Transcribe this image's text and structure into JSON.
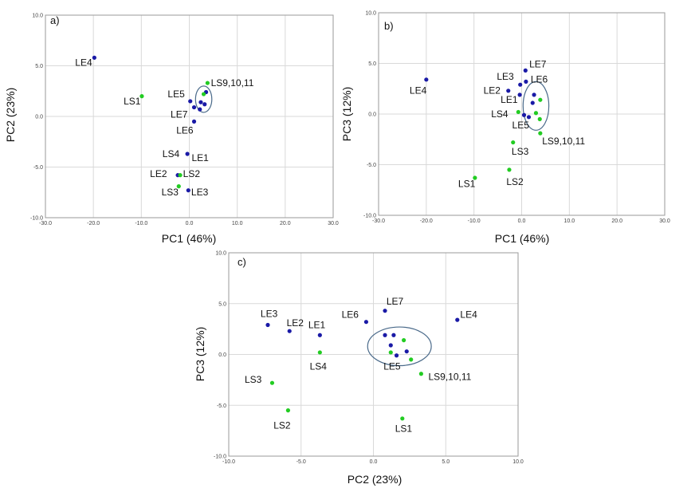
{
  "colors": {
    "LE": "#1a1aa6",
    "LS": "#22cc22"
  },
  "chart_data": [
    {
      "type": "scatter",
      "panel_label": "a)",
      "xlabel": "PC1 (46%)",
      "ylabel": "PC2 (23%)",
      "xlim": [
        -30,
        30
      ],
      "ylim": [
        -10,
        10
      ],
      "xticks": [
        -30,
        -20,
        -10,
        0,
        10,
        20,
        30
      ],
      "yticks": [
        -10,
        -5,
        0,
        5,
        10
      ],
      "xtick_labels": [
        "-30.0",
        "-20.0",
        "-10.0",
        "0.0",
        "10.0",
        "20.0",
        "30.0"
      ],
      "ytick_labels": [
        "-10.0",
        "-5.0",
        "0.0",
        "5.0",
        "10.0"
      ],
      "grid": true,
      "points": [
        {
          "group": "LE",
          "x": -19.8,
          "y": 5.8
        },
        {
          "group": "LS",
          "x": -9.9,
          "y": 2.0
        },
        {
          "group": "LS",
          "x": 3.8,
          "y": 3.3
        },
        {
          "group": "LE",
          "x": 3.5,
          "y": 2.4
        },
        {
          "group": "LS",
          "x": 3.0,
          "y": 2.2
        },
        {
          "group": "LE",
          "x": 0.2,
          "y": 1.5
        },
        {
          "group": "LE",
          "x": 2.4,
          "y": 1.4
        },
        {
          "group": "LE",
          "x": 3.2,
          "y": 1.2
        },
        {
          "group": "LE",
          "x": 1.0,
          "y": 0.9
        },
        {
          "group": "LE",
          "x": 2.2,
          "y": 0.7
        },
        {
          "group": "LE",
          "x": 1.0,
          "y": -0.5
        },
        {
          "group": "LE",
          "x": -0.4,
          "y": -3.7
        },
        {
          "group": "LE",
          "x": -2.4,
          "y": -5.8
        },
        {
          "group": "LS",
          "x": -1.9,
          "y": -5.8
        },
        {
          "group": "LS",
          "x": -2.2,
          "y": -6.9
        },
        {
          "group": "LE",
          "x": -0.2,
          "y": -7.3
        }
      ],
      "labels": [
        {
          "text": "LE4",
          "x": -23.8,
          "y": 5.0
        },
        {
          "text": "LS1",
          "x": -13.7,
          "y": 1.2
        },
        {
          "text": "LS9,10,11",
          "x": 4.5,
          "y": 3.0
        },
        {
          "text": "LE5",
          "x": -4.5,
          "y": 1.9
        },
        {
          "text": "LE7",
          "x": -3.9,
          "y": -0.1
        },
        {
          "text": "LE6",
          "x": -2.7,
          "y": -1.7
        },
        {
          "text": "LS4",
          "x": -5.6,
          "y": -4.0
        },
        {
          "text": "LE1",
          "x": 0.5,
          "y": -4.4
        },
        {
          "text": "LE2",
          "x": -8.2,
          "y": -6.0
        },
        {
          "text": "LS2",
          "x": -1.3,
          "y": -6.0
        },
        {
          "text": "LS3",
          "x": -5.8,
          "y": -7.8
        },
        {
          "text": "LE3",
          "x": 0.4,
          "y": -7.8
        }
      ],
      "ellipse": {
        "cx": 3.0,
        "cy": 1.7,
        "rx": 1.7,
        "ry": 1.3
      }
    },
    {
      "type": "scatter",
      "panel_label": "b)",
      "xlabel": "PC1 (46%)",
      "ylabel": "PC3 (12%)",
      "xlim": [
        -30,
        30
      ],
      "ylim": [
        -10,
        10
      ],
      "xticks": [
        -30,
        -20,
        -10,
        0,
        10,
        20,
        30
      ],
      "yticks": [
        -10,
        -5,
        0,
        5,
        10
      ],
      "xtick_labels": [
        "-30.0",
        "-20.0",
        "-10.0",
        "0.0",
        "10.0",
        "20.0",
        "30.0"
      ],
      "ytick_labels": [
        "-10.0",
        "-5.0",
        "0.0",
        "5.0",
        "10.0"
      ],
      "grid": true,
      "points": [
        {
          "group": "LE",
          "x": -20.0,
          "y": 3.4
        },
        {
          "group": "LE",
          "x": 0.8,
          "y": 4.3
        },
        {
          "group": "LE",
          "x": -0.3,
          "y": 2.9
        },
        {
          "group": "LE",
          "x": 0.9,
          "y": 3.2
        },
        {
          "group": "LE",
          "x": -2.8,
          "y": 2.3
        },
        {
          "group": "LE",
          "x": -0.4,
          "y": 1.9
        },
        {
          "group": "LE",
          "x": 2.6,
          "y": 1.9
        },
        {
          "group": "LS",
          "x": 3.9,
          "y": 1.4
        },
        {
          "group": "LE",
          "x": 2.3,
          "y": 1.1
        },
        {
          "group": "LS",
          "x": -0.7,
          "y": 0.2
        },
        {
          "group": "LE",
          "x": 0.5,
          "y": -0.1
        },
        {
          "group": "LS",
          "x": 3.0,
          "y": 0.1
        },
        {
          "group": "LE",
          "x": 1.5,
          "y": -0.3
        },
        {
          "group": "LS",
          "x": 3.8,
          "y": -0.5
        },
        {
          "group": "LS",
          "x": 3.9,
          "y": -1.9
        },
        {
          "group": "LS",
          "x": -1.8,
          "y": -2.8
        },
        {
          "group": "LS",
          "x": -2.6,
          "y": -5.5
        },
        {
          "group": "LS",
          "x": -9.8,
          "y": -6.3
        }
      ],
      "labels": [
        {
          "text": "LE7",
          "x": 1.6,
          "y": 4.6
        },
        {
          "text": "LE3",
          "x": -5.2,
          "y": 3.4
        },
        {
          "text": "LE6",
          "x": 1.9,
          "y": 3.1
        },
        {
          "text": "LE2",
          "x": -8.0,
          "y": 2.0
        },
        {
          "text": "LE4",
          "x": -23.5,
          "y": 2.0
        },
        {
          "text": "LE1",
          "x": -4.4,
          "y": 1.1
        },
        {
          "text": "LS4",
          "x": -6.4,
          "y": -0.3
        },
        {
          "text": "LE5",
          "x": -2.0,
          "y": -1.4
        },
        {
          "text": "LS9,10,11",
          "x": 4.3,
          "y": -3.0
        },
        {
          "text": "LS3",
          "x": -2.1,
          "y": -4.0
        },
        {
          "text": "LS1",
          "x": -13.3,
          "y": -7.2
        },
        {
          "text": "LS2",
          "x": -3.2,
          "y": -7.0
        }
      ],
      "ellipse": {
        "cx": 3.0,
        "cy": 0.8,
        "rx": 2.7,
        "ry": 2.4
      }
    },
    {
      "type": "scatter",
      "panel_label": "c)",
      "xlabel": "PC2 (23%)",
      "ylabel": "PC3 (12%)",
      "xlim": [
        -10,
        10
      ],
      "ylim": [
        -10,
        10
      ],
      "xticks": [
        -10,
        -5,
        0,
        5,
        10
      ],
      "yticks": [
        -10,
        -5,
        0,
        5,
        10
      ],
      "xtick_labels": [
        "-10.0",
        "-5.0",
        "0.0",
        "5.0",
        "10.0"
      ],
      "ytick_labels": [
        "-10.0",
        "-5.0",
        "0.0",
        "5.0",
        "10.0"
      ],
      "grid": true,
      "points": [
        {
          "group": "LE",
          "x": -7.3,
          "y": 2.9
        },
        {
          "group": "LE",
          "x": -5.8,
          "y": 2.3
        },
        {
          "group": "LE",
          "x": -3.7,
          "y": 1.9
        },
        {
          "group": "LS",
          "x": -3.7,
          "y": 0.2
        },
        {
          "group": "LE",
          "x": -0.5,
          "y": 3.2
        },
        {
          "group": "LE",
          "x": 0.8,
          "y": 4.3
        },
        {
          "group": "LE",
          "x": 5.8,
          "y": 3.4
        },
        {
          "group": "LE",
          "x": 0.8,
          "y": 1.9
        },
        {
          "group": "LE",
          "x": 1.4,
          "y": 1.9
        },
        {
          "group": "LS",
          "x": 2.1,
          "y": 1.4
        },
        {
          "group": "LE",
          "x": 1.2,
          "y": 0.9
        },
        {
          "group": "LE",
          "x": 2.3,
          "y": 0.3
        },
        {
          "group": "LS",
          "x": 1.2,
          "y": 0.2
        },
        {
          "group": "LE",
          "x": 1.6,
          "y": -0.1
        },
        {
          "group": "LS",
          "x": 2.6,
          "y": -0.5
        },
        {
          "group": "LS",
          "x": 3.3,
          "y": -1.9
        },
        {
          "group": "LS",
          "x": -7.0,
          "y": -2.8
        },
        {
          "group": "LS",
          "x": -5.9,
          "y": -5.5
        },
        {
          "group": "LS",
          "x": 2.0,
          "y": -6.3
        }
      ],
      "labels": [
        {
          "text": "LE3",
          "x": -7.8,
          "y": 3.7
        },
        {
          "text": "LE2",
          "x": -6.0,
          "y": 2.8
        },
        {
          "text": "LE1",
          "x": -4.5,
          "y": 2.6
        },
        {
          "text": "LE6",
          "x": -2.2,
          "y": 3.6
        },
        {
          "text": "LE7",
          "x": 0.9,
          "y": 4.9
        },
        {
          "text": "LE4",
          "x": 6.0,
          "y": 3.6
        },
        {
          "text": "LS4",
          "x": -4.4,
          "y": -1.5
        },
        {
          "text": "LE5",
          "x": 0.7,
          "y": -1.5
        },
        {
          "text": "LS9,10,11",
          "x": 3.8,
          "y": -2.5
        },
        {
          "text": "LS3",
          "x": -8.9,
          "y": -2.8
        },
        {
          "text": "LS2",
          "x": -6.9,
          "y": -7.3
        },
        {
          "text": "LS1",
          "x": 1.5,
          "y": -7.6
        }
      ],
      "ellipse": {
        "cx": 1.8,
        "cy": 0.8,
        "rx": 2.2,
        "ry": 1.9
      }
    }
  ]
}
